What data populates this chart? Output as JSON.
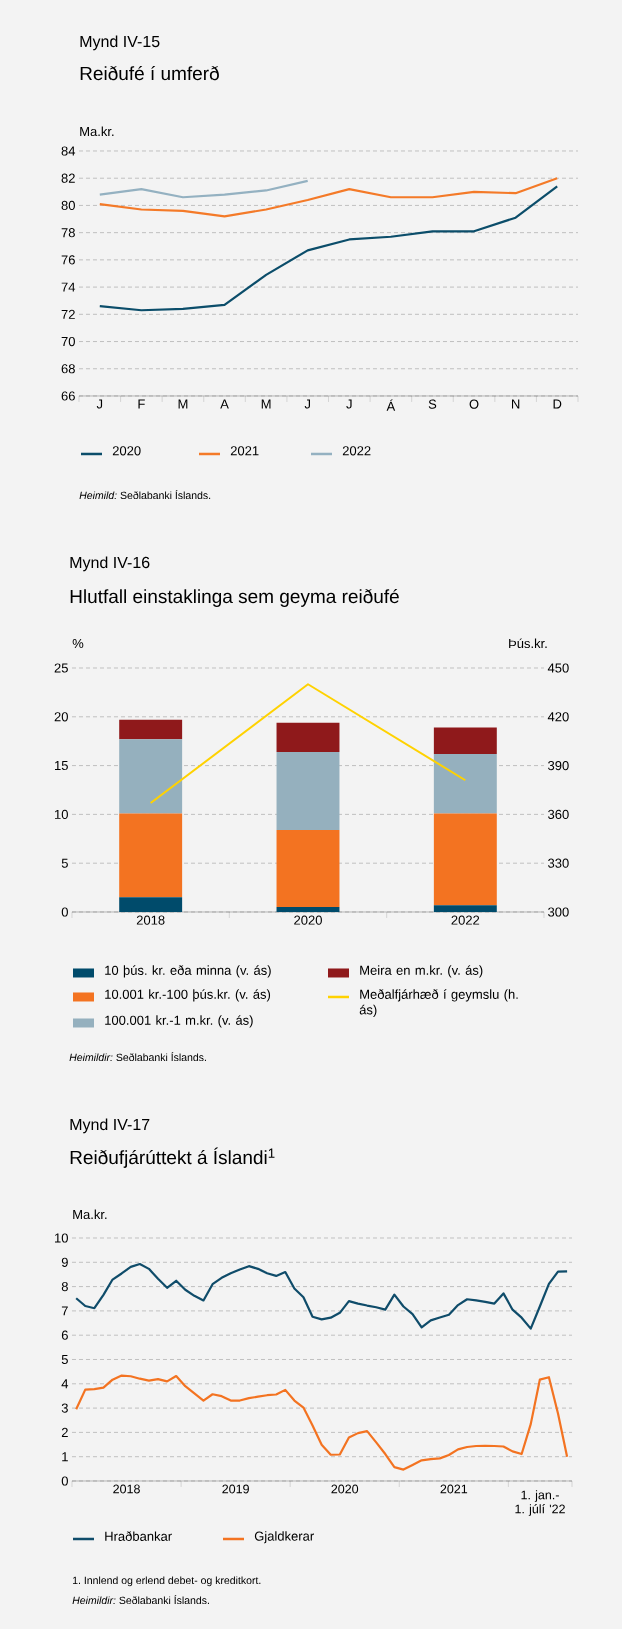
{
  "chart_data": [
    {
      "type": "line",
      "title": "Mynd IV-15",
      "subtitle": "Reiðufé í umferð",
      "ylabel": "Ma.kr.",
      "categories": [
        "J",
        "F",
        "M",
        "A",
        "M",
        "J",
        "J",
        "Á",
        "S",
        "O",
        "N",
        "D"
      ],
      "series": [
        {
          "name": "2020",
          "color": "#0b4d6a",
          "values": [
            72.6,
            72.3,
            72.4,
            72.7,
            74.9,
            76.7,
            77.5,
            77.7,
            78.1,
            78.1,
            79.1,
            81.4
          ]
        },
        {
          "name": "2021",
          "color": "#f47a28",
          "values": [
            80.1,
            79.7,
            79.6,
            79.2,
            79.7,
            80.4,
            81.2,
            80.6,
            80.6,
            81.0,
            80.9,
            82.0
          ]
        },
        {
          "name": "2022",
          "color": "#94b1c1",
          "values": [
            80.8,
            81.2,
            80.6,
            80.8,
            81.1,
            81.8,
            null,
            null,
            null,
            null,
            null,
            null
          ]
        }
      ],
      "ylim": [
        66,
        84
      ],
      "yticks": [
        66,
        68,
        70,
        72,
        74,
        76,
        78,
        80,
        82,
        84
      ],
      "grid": "y",
      "legend": "bottom",
      "annotations": [
        "*Heimild:* Seðlabanki Íslands."
      ]
    },
    {
      "type": "bar",
      "stacked": true,
      "title": "Mynd IV-16",
      "subtitle": "Hlutfall einstaklinga sem geyma reiðufé",
      "ylabel": "%",
      "y2label": "Þús.kr.",
      "categories": [
        "2018",
        "2020",
        "2022"
      ],
      "series": [
        {
          "name": "10 þús. kr. eða minna (v. ás)",
          "color": "#004b6b",
          "values": [
            1.5,
            0.5,
            0.7
          ]
        },
        {
          "name": "10.001 kr.-100 þús.kr. (v. ás)",
          "color": "#f37321",
          "values": [
            8.6,
            7.9,
            9.4
          ]
        },
        {
          "name": "100.001 kr.-1 m.kr. (v. ás)",
          "color": "#95b0be",
          "values": [
            7.6,
            8.0,
            6.1
          ]
        },
        {
          "name": "Meira en m.kr. (v. ás)",
          "color": "#8f191b",
          "values": [
            2.0,
            3.0,
            2.7
          ]
        },
        {
          "name": "Meðalfjárhæð í geymslu (h. ás)",
          "type": "line",
          "axis": "y2",
          "color": "#ffd200",
          "values": [
            367,
            440,
            381
          ]
        }
      ],
      "ylim": [
        0,
        25
      ],
      "yticks": [
        0,
        5,
        10,
        15,
        20,
        25
      ],
      "y2lim": [
        300,
        450
      ],
      "y2ticks": [
        300,
        330,
        360,
        390,
        420,
        450
      ],
      "grid": "y",
      "legend": "bottom",
      "annotations": [
        "*Heimildir:* Seðlabanki Íslands."
      ]
    },
    {
      "type": "line",
      "title": "Mynd IV-17",
      "subtitle": "Reiðufjárúttekt á Íslandi$^{1}$",
      "ylabel": "Ma.kr.",
      "x": [
        "2018-01-15",
        "2018-02-15",
        "2018-03-15",
        "2018-04-15",
        "2018-05-15",
        "2018-06-15",
        "2018-07-15",
        "2018-08-15",
        "2018-09-15",
        "2018-10-15",
        "2018-11-15",
        "2018-12-15",
        "2019-01-15",
        "2019-02-15",
        "2019-03-15",
        "2019-04-15",
        "2019-05-15",
        "2019-06-15",
        "2019-07-15",
        "2019-08-15",
        "2019-09-15",
        "2019-10-15",
        "2019-11-15",
        "2019-12-15",
        "2020-01-15",
        "2020-02-15",
        "2020-03-15",
        "2020-04-15",
        "2020-05-15",
        "2020-06-15",
        "2020-07-15",
        "2020-08-15",
        "2020-09-15",
        "2020-10-15",
        "2020-11-15",
        "2020-12-15",
        "2021-01-15",
        "2021-02-15",
        "2021-03-15",
        "2021-04-15",
        "2021-05-15",
        "2021-06-15",
        "2021-07-15",
        "2021-08-15",
        "2021-09-15",
        "2021-10-15",
        "2021-11-15",
        "2021-12-15",
        "2022-01-15",
        "2022-02-15",
        "2022-03-15",
        "2022-04-15",
        "2022-05-15",
        "2022-06-15",
        "2022-07-15"
      ],
      "series": [
        {
          "name": "Hraðbankar",
          "color": "#0f4c6a",
          "values": [
            7.52,
            7.2,
            7.11,
            7.66,
            8.29,
            8.54,
            8.81,
            8.93,
            8.73,
            8.32,
            7.95,
            8.24,
            7.87,
            7.62,
            7.43,
            8.1,
            8.36,
            8.55,
            8.7,
            8.84,
            8.73,
            8.55,
            8.44,
            8.6,
            7.92,
            7.56,
            6.76,
            6.65,
            6.72,
            6.92,
            7.4,
            7.3,
            7.22,
            7.15,
            7.05,
            7.67,
            7.18,
            6.87,
            6.32,
            6.61,
            6.73,
            6.84,
            7.24,
            7.48,
            7.43,
            7.37,
            7.3,
            7.72,
            7.05,
            6.72,
            6.27,
            7.18,
            8.11,
            8.62,
            8.63
          ]
        },
        {
          "name": "Gjaldkerar",
          "color": "#f37321",
          "values": [
            2.95,
            3.76,
            3.78,
            3.84,
            4.17,
            4.34,
            4.31,
            4.21,
            4.13,
            4.19,
            4.1,
            4.32,
            3.9,
            3.61,
            3.31,
            3.57,
            3.49,
            3.31,
            3.31,
            3.41,
            3.47,
            3.53,
            3.56,
            3.75,
            3.31,
            3.02,
            2.28,
            1.49,
            1.08,
            1.09,
            1.79,
            1.97,
            2.05,
            1.59,
            1.11,
            0.57,
            0.47,
            0.66,
            0.85,
            0.9,
            0.93,
            1.07,
            1.3,
            1.4,
            1.44,
            1.45,
            1.44,
            1.42,
            1.22,
            1.11,
            2.34,
            4.17,
            4.27,
            2.78,
            1.0
          ]
        }
      ],
      "xlim": [
        "2018-01-01",
        "2022-08-01"
      ],
      "xticks": [
        {
          "value": "2018-01-01",
          "label": null
        },
        {
          "value": "2018-07-01",
          "label": "2018"
        },
        {
          "value": "2019-01-01",
          "label": null
        },
        {
          "value": "2019-07-01",
          "label": "2019"
        },
        {
          "value": "2020-01-01",
          "label": null
        },
        {
          "value": "2020-07-01",
          "label": "2020"
        },
        {
          "value": "2021-01-01",
          "label": null
        },
        {
          "value": "2021-07-01",
          "label": "2021"
        },
        {
          "value": "2022-01-01",
          "label": null
        },
        {
          "value": "2022-08-01",
          "label": null
        }
      ],
      "ylim": [
        0,
        10
      ],
      "yticks": [
        0,
        1,
        2,
        3,
        4,
        5,
        6,
        7,
        8,
        9,
        10
      ],
      "grid": "y",
      "legend": "bottom",
      "annotations": [
        "1. jan.- 1. júlí '22",
        "1. Innlend og erlend debet- og kreditkort.",
        "*Heimildir:* Seðlabanki Íslands."
      ]
    }
  ]
}
